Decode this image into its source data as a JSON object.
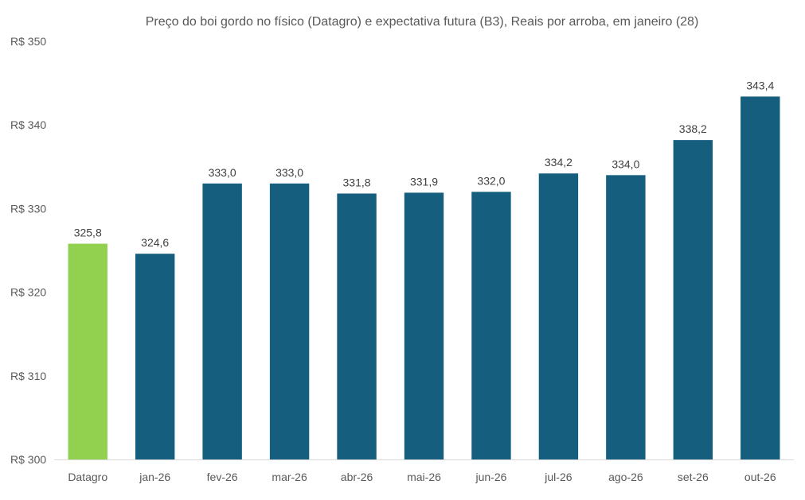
{
  "chart_data": {
    "type": "bar",
    "title": "Preço do boi gordo no físico (Datagro)  e expectativa futura (B3), Reais por arroba, em janeiro (28)",
    "categories": [
      "Datagro",
      "jan-26",
      "fev-26",
      "mar-26",
      "abr-26",
      "mai-26",
      "jun-26",
      "jul-26",
      "ago-26",
      "set-26",
      "out-26"
    ],
    "values": [
      325.8,
      324.6,
      333.0,
      333.0,
      331.8,
      331.9,
      332.0,
      334.2,
      334.0,
      338.2,
      343.4
    ],
    "value_labels": [
      "325,8",
      "324,6",
      "333,0",
      "333,0",
      "331,8",
      "331,9",
      "332,0",
      "334,2",
      "334,0",
      "338,2",
      "343,4"
    ],
    "ylim": [
      300,
      350
    ],
    "yticks": [
      300,
      310,
      320,
      330,
      340,
      350
    ],
    "ytick_labels": [
      "R$ 300",
      "R$ 310",
      "R$ 320",
      "R$ 330",
      "R$ 340",
      "R$ 350"
    ],
    "xlabel": "",
    "ylabel": "",
    "grid": false,
    "colors": {
      "highlight": "#92D050",
      "default": "#155E7E",
      "axis": "#D9D9D9"
    }
  }
}
